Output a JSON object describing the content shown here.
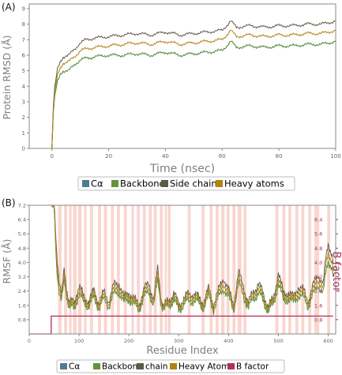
{
  "colors": {
    "calpha": "#4f7c94",
    "backbone": "#63943c",
    "sidechains": "#5f5a46",
    "heavy": "#b0830f",
    "bfactor": "#b0305a",
    "band": "#f9d6cf",
    "axis_gray": "#8a8a8a"
  },
  "panels": {
    "a": {
      "label": "(A)"
    },
    "b": {
      "label": "(B)"
    }
  },
  "chart_data": [
    {
      "type": "line",
      "xlabel": "Time (nsec)",
      "ylabel": "Protein RMSD (Å)",
      "xlim": [
        -8,
        100
      ],
      "ylim": [
        0,
        9.3
      ],
      "x_ticks": [
        "0",
        "20",
        "40",
        "60",
        "80",
        "100"
      ],
      "y_ticks": [
        "0",
        "1",
        "2",
        "3",
        "4",
        "5",
        "6",
        "7",
        "8",
        "9"
      ],
      "legend_position": "bottom",
      "series": [
        {
          "name": "Cα",
          "color_key": "calpha",
          "x": [
            0,
            0.5,
            1,
            2,
            3,
            4,
            6,
            8,
            10,
            12,
            15,
            20,
            25,
            30,
            35,
            40,
            45,
            50,
            55,
            60,
            63,
            65,
            70,
            75,
            80,
            85,
            90,
            95,
            100
          ],
          "values": [
            0,
            2.3,
            3.3,
            4.3,
            4.8,
            5.0,
            5.0,
            5.4,
            5.7,
            5.8,
            5.9,
            6.0,
            6.0,
            6.1,
            6.0,
            6.2,
            6.0,
            6.1,
            6.2,
            6.3,
            6.9,
            6.5,
            6.6,
            6.5,
            6.6,
            6.6,
            6.7,
            6.7,
            6.9
          ]
        },
        {
          "name": "Backbone",
          "color_key": "backbone",
          "x": [
            0,
            0.5,
            1,
            2,
            3,
            4,
            6,
            8,
            10,
            12,
            15,
            20,
            25,
            30,
            35,
            40,
            45,
            50,
            55,
            60,
            63,
            65,
            70,
            75,
            80,
            85,
            90,
            95,
            100
          ],
          "values": [
            0,
            2.3,
            3.3,
            4.3,
            4.8,
            5.0,
            5.0,
            5.4,
            5.7,
            5.8,
            5.9,
            6.0,
            6.0,
            6.1,
            6.0,
            6.2,
            6.0,
            6.1,
            6.2,
            6.3,
            6.9,
            6.5,
            6.6,
            6.5,
            6.6,
            6.6,
            6.7,
            6.7,
            6.9
          ]
        },
        {
          "name": "Side chains",
          "color_key": "sidechains",
          "x": [
            0,
            0.5,
            1,
            2,
            3,
            4,
            6,
            8,
            10,
            12,
            15,
            20,
            25,
            30,
            35,
            40,
            45,
            50,
            55,
            60,
            63,
            65,
            70,
            75,
            80,
            85,
            90,
            95,
            100
          ],
          "values": [
            0,
            2.7,
            3.9,
            5.1,
            5.6,
            5.9,
            6.0,
            6.4,
            6.8,
            7.0,
            7.1,
            7.2,
            7.3,
            7.4,
            7.3,
            7.5,
            7.3,
            7.4,
            7.5,
            7.6,
            8.2,
            7.8,
            7.9,
            7.8,
            7.9,
            7.9,
            8.0,
            8.0,
            8.2
          ]
        },
        {
          "name": "Heavy atoms",
          "color_key": "heavy",
          "x": [
            0,
            0.5,
            1,
            2,
            3,
            4,
            6,
            8,
            10,
            12,
            15,
            20,
            25,
            30,
            35,
            40,
            45,
            50,
            55,
            60,
            63,
            65,
            70,
            75,
            80,
            85,
            90,
            95,
            100
          ],
          "values": [
            0,
            2.5,
            3.6,
            4.7,
            5.2,
            5.5,
            5.6,
            5.9,
            6.3,
            6.4,
            6.5,
            6.6,
            6.7,
            6.8,
            6.7,
            6.9,
            6.7,
            6.8,
            6.9,
            7.0,
            7.6,
            7.2,
            7.3,
            7.2,
            7.3,
            7.3,
            7.4,
            7.4,
            7.6
          ]
        }
      ]
    },
    {
      "type": "line",
      "xlabel": "Residue Index",
      "ylabel": "RMSF (Å)",
      "ylabel_right": "B factor",
      "xlim": [
        0,
        615
      ],
      "ylim": [
        0,
        7.2
      ],
      "x_ticks": [
        "0",
        "100",
        "200",
        "300",
        "400",
        "500",
        "600"
      ],
      "y_ticks": [
        "0.8",
        "1.6",
        "2.4",
        "3.2",
        "4.0",
        "4.8",
        "5.6",
        "6.4",
        "7.2"
      ],
      "y_ticks_right": [
        "0.8",
        "1.6",
        "2.4",
        "3.2",
        "4.0",
        "4.8",
        "5.6",
        "6.4"
      ],
      "legend_position": "bottom",
      "highlight_bands": [
        [
          58,
          65
        ],
        [
          70,
          76
        ],
        [
          80,
          85
        ],
        [
          88,
          95
        ],
        [
          98,
          105
        ],
        [
          110,
          115
        ],
        [
          122,
          128
        ],
        [
          138,
          144
        ],
        [
          150,
          156
        ],
        [
          164,
          170
        ],
        [
          176,
          182
        ],
        [
          190,
          196
        ],
        [
          205,
          210
        ],
        [
          216,
          222
        ],
        [
          228,
          234
        ],
        [
          240,
          246
        ],
        [
          250,
          256
        ],
        [
          262,
          268
        ],
        [
          272,
          276
        ],
        [
          278,
          284
        ],
        [
          318,
          324
        ],
        [
          346,
          352
        ],
        [
          362,
          368
        ],
        [
          374,
          380
        ],
        [
          385,
          392
        ],
        [
          396,
          402
        ],
        [
          408,
          414
        ],
        [
          418,
          426
        ],
        [
          430,
          436
        ],
        [
          494,
          500
        ],
        [
          508,
          514
        ],
        [
          520,
          526
        ],
        [
          534,
          540
        ],
        [
          546,
          552
        ],
        [
          560,
          566
        ],
        [
          572,
          582
        ],
        [
          598,
          604
        ]
      ],
      "series": [
        {
          "name": "Cα",
          "color_key": "calpha",
          "x": [
            45,
            50,
            55,
            60,
            65,
            70,
            75,
            80,
            85,
            90,
            95,
            100,
            110,
            120,
            130,
            140,
            150,
            160,
            170,
            180,
            190,
            200,
            210,
            220,
            230,
            240,
            250,
            258,
            265,
            270,
            280,
            290,
            300,
            310,
            320,
            330,
            340,
            350,
            360,
            370,
            380,
            390,
            400,
            410,
            420,
            430,
            440,
            450,
            460,
            470,
            480,
            490,
            500,
            510,
            520,
            530,
            540,
            550,
            560,
            570,
            580,
            590,
            595,
            600,
            605,
            610
          ],
          "values": [
            7.2,
            6.9,
            3.7,
            2.5,
            1.8,
            2.9,
            2.2,
            1.6,
            1.5,
            1.3,
            1.9,
            2.2,
            1.7,
            1.6,
            2.0,
            1.5,
            1.9,
            1.6,
            2.2,
            2.4,
            1.7,
            2.0,
            1.6,
            1.4,
            2.0,
            2.4,
            1.6,
            3.0,
            1.7,
            1.3,
            1.6,
            1.9,
            1.3,
            1.7,
            1.8,
            1.9,
            1.7,
            1.5,
            2.1,
            1.4,
            2.0,
            2.6,
            2.0,
            1.4,
            2.8,
            2.2,
            1.4,
            2.0,
            2.3,
            1.8,
            1.3,
            1.6,
            2.9,
            1.8,
            2.0,
            1.7,
            2.2,
            2.0,
            1.6,
            2.2,
            2.8,
            2.2,
            3.4,
            4.2,
            3.8,
            3.2
          ]
        },
        {
          "name": "Backbone",
          "color_key": "backbone",
          "x": [
            45,
            50,
            55,
            60,
            65,
            70,
            75,
            80,
            85,
            90,
            95,
            100,
            110,
            120,
            130,
            140,
            150,
            160,
            170,
            180,
            190,
            200,
            210,
            220,
            230,
            240,
            250,
            258,
            265,
            270,
            280,
            290,
            300,
            310,
            320,
            330,
            340,
            350,
            360,
            370,
            380,
            390,
            400,
            410,
            420,
            430,
            440,
            450,
            460,
            470,
            480,
            490,
            500,
            510,
            520,
            530,
            540,
            550,
            560,
            570,
            580,
            590,
            595,
            600,
            605,
            610
          ],
          "values": [
            7.2,
            6.9,
            3.7,
            2.5,
            1.8,
            2.9,
            2.2,
            1.6,
            1.5,
            1.3,
            1.9,
            2.2,
            1.7,
            1.6,
            2.0,
            1.5,
            1.9,
            1.6,
            2.2,
            2.4,
            1.7,
            2.0,
            1.6,
            1.4,
            2.0,
            2.4,
            1.6,
            3.0,
            1.7,
            1.3,
            1.6,
            1.9,
            1.3,
            1.7,
            1.8,
            1.9,
            1.7,
            1.5,
            2.1,
            1.4,
            2.0,
            2.6,
            2.0,
            1.4,
            2.8,
            2.2,
            1.4,
            2.0,
            2.3,
            1.8,
            1.3,
            1.6,
            2.9,
            1.8,
            2.0,
            1.7,
            2.2,
            2.0,
            1.6,
            2.2,
            2.8,
            2.2,
            3.4,
            4.2,
            3.8,
            3.2
          ]
        },
        {
          "name": "chain",
          "color_key": "sidechains",
          "x": [
            45,
            50,
            55,
            60,
            65,
            70,
            75,
            80,
            85,
            90,
            95,
            100,
            110,
            120,
            130,
            140,
            150,
            160,
            170,
            180,
            190,
            200,
            210,
            220,
            230,
            240,
            250,
            258,
            265,
            270,
            280,
            290,
            300,
            310,
            320,
            330,
            340,
            350,
            360,
            370,
            380,
            390,
            400,
            410,
            420,
            430,
            440,
            450,
            460,
            470,
            480,
            490,
            500,
            510,
            520,
            530,
            540,
            550,
            560,
            570,
            580,
            590,
            595,
            600,
            605,
            610
          ],
          "values": [
            7.2,
            7.2,
            4.6,
            3.1,
            2.2,
            3.5,
            2.6,
            1.9,
            1.8,
            1.6,
            2.3,
            2.7,
            2.0,
            1.9,
            2.4,
            1.8,
            2.3,
            1.9,
            2.7,
            2.9,
            2.0,
            2.4,
            1.9,
            1.7,
            2.4,
            2.9,
            1.9,
            3.7,
            2.0,
            1.5,
            1.9,
            2.3,
            1.6,
            2.0,
            2.2,
            2.3,
            2.0,
            1.8,
            2.5,
            1.7,
            2.4,
            3.2,
            2.4,
            1.7,
            3.4,
            2.7,
            1.7,
            2.4,
            2.8,
            2.2,
            1.6,
            1.9,
            3.5,
            2.2,
            2.4,
            2.0,
            2.7,
            2.4,
            1.9,
            2.7,
            3.4,
            2.7,
            4.2,
            5.2,
            4.6,
            3.9
          ]
        },
        {
          "name": "Heavy Atoms",
          "color_key": "heavy",
          "x": [
            45,
            50,
            55,
            60,
            65,
            70,
            75,
            80,
            85,
            90,
            95,
            100,
            110,
            120,
            130,
            140,
            150,
            160,
            170,
            180,
            190,
            200,
            210,
            220,
            230,
            240,
            250,
            258,
            265,
            270,
            280,
            290,
            300,
            310,
            320,
            330,
            340,
            350,
            360,
            370,
            380,
            390,
            400,
            410,
            420,
            430,
            440,
            450,
            460,
            470,
            480,
            490,
            500,
            510,
            520,
            530,
            540,
            550,
            560,
            570,
            580,
            590,
            595,
            600,
            605,
            610
          ],
          "values": [
            7.2,
            7.0,
            4.1,
            2.8,
            2.0,
            3.2,
            2.4,
            1.75,
            1.65,
            1.45,
            2.1,
            2.45,
            1.85,
            1.75,
            2.2,
            1.65,
            2.1,
            1.75,
            2.45,
            2.65,
            1.85,
            2.2,
            1.75,
            1.55,
            2.2,
            2.65,
            1.75,
            3.35,
            1.85,
            1.4,
            1.75,
            2.1,
            1.45,
            1.85,
            2.0,
            2.1,
            1.85,
            1.65,
            2.3,
            1.55,
            2.2,
            2.9,
            2.2,
            1.55,
            3.1,
            2.45,
            1.55,
            2.2,
            2.55,
            2.0,
            1.45,
            1.75,
            3.2,
            2.0,
            2.2,
            1.85,
            2.45,
            2.2,
            1.75,
            2.45,
            3.1,
            2.45,
            3.8,
            4.7,
            4.2,
            3.55
          ]
        },
        {
          "name": "B factor",
          "color_key": "bfactor",
          "axis": "right",
          "x": [
            0,
            44,
            44,
            610
          ],
          "values": [
            0.0,
            0.0,
            1.0,
            1.0
          ]
        }
      ]
    }
  ]
}
